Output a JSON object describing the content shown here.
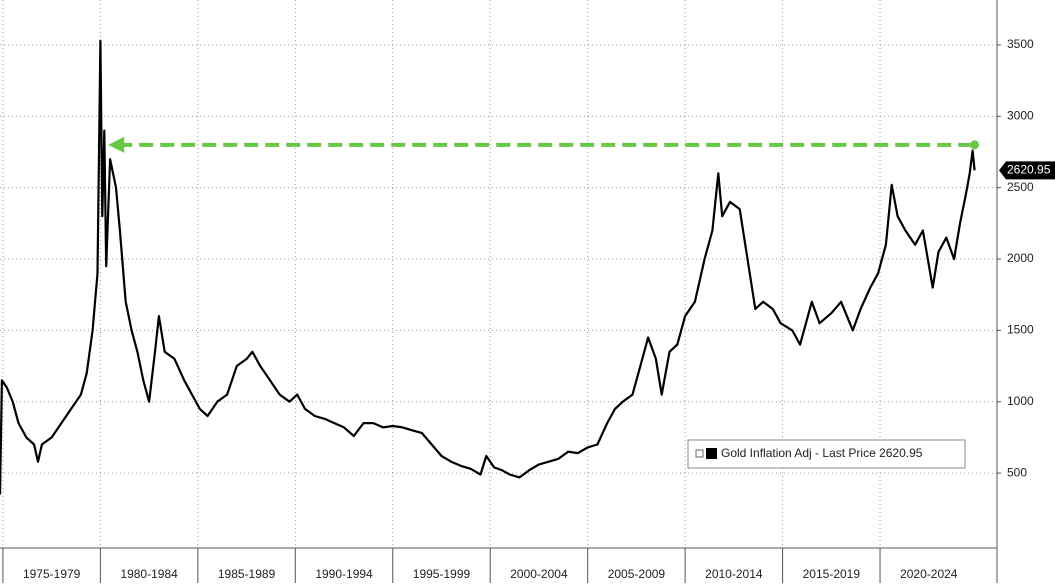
{
  "chart_data": {
    "type": "line",
    "series": [
      {
        "name": "Gold Inflation Adj",
        "color": "#000000",
        "x": [
          1974.85,
          1974.95,
          1975.2,
          1975.5,
          1975.8,
          1976.2,
          1976.6,
          1976.8,
          1977.0,
          1977.5,
          1978.0,
          1978.5,
          1979.0,
          1979.3,
          1979.6,
          1979.85,
          1980.0,
          1980.1,
          1980.2,
          1980.3,
          1980.5,
          1980.8,
          1981.0,
          1981.3,
          1981.6,
          1981.9,
          1982.2,
          1982.5,
          1982.8,
          1983.0,
          1983.3,
          1983.8,
          1984.3,
          1984.7,
          1985.1,
          1985.5,
          1986.0,
          1986.5,
          1987.0,
          1987.5,
          1987.8,
          1988.2,
          1988.7,
          1989.2,
          1989.7,
          1990.1,
          1990.5,
          1991.0,
          1991.5,
          1992.0,
          1992.5,
          1993.0,
          1993.5,
          1994.0,
          1994.5,
          1995.0,
          1995.5,
          1996.0,
          1996.5,
          1997.0,
          1997.5,
          1998.0,
          1998.5,
          1999.0,
          1999.5,
          1999.8,
          2000.2,
          2000.6,
          2001.0,
          2001.5,
          2002.0,
          2002.5,
          2003.0,
          2003.5,
          2004.0,
          2004.5,
          2005.0,
          2005.5,
          2006.0,
          2006.4,
          2006.8,
          2007.3,
          2007.8,
          2008.1,
          2008.5,
          2008.8,
          2009.2,
          2009.6,
          2010.0,
          2010.5,
          2011.0,
          2011.4,
          2011.7,
          2011.9,
          2012.3,
          2012.8,
          2013.2,
          2013.6,
          2014.0,
          2014.5,
          2014.9,
          2015.5,
          2015.9,
          2016.5,
          2016.9,
          2017.5,
          2018.0,
          2018.6,
          2019.0,
          2019.5,
          2019.9,
          2020.3,
          2020.6,
          2020.9,
          2021.3,
          2021.8,
          2022.2,
          2022.7,
          2023.0,
          2023.4,
          2023.8,
          2024.1,
          2024.4,
          2024.6,
          2024.75,
          2024.85
        ],
        "values": [
          350,
          1150,
          1100,
          1000,
          850,
          750,
          700,
          580,
          700,
          750,
          850,
          950,
          1050,
          1200,
          1500,
          1900,
          3530,
          2300,
          2900,
          1950,
          2700,
          2500,
          2200,
          1700,
          1500,
          1350,
          1150,
          1000,
          1350,
          1600,
          1350,
          1300,
          1150,
          1050,
          950,
          900,
          1000,
          1050,
          1250,
          1300,
          1350,
          1250,
          1150,
          1050,
          1000,
          1050,
          950,
          900,
          880,
          850,
          820,
          760,
          850,
          850,
          820,
          830,
          820,
          800,
          780,
          700,
          620,
          580,
          550,
          530,
          490,
          620,
          540,
          520,
          490,
          470,
          520,
          560,
          580,
          600,
          650,
          640,
          680,
          700,
          850,
          950,
          1000,
          1050,
          1300,
          1450,
          1300,
          1050,
          1350,
          1400,
          1600,
          1700,
          2000,
          2200,
          2600,
          2300,
          2400,
          2350,
          2000,
          1650,
          1700,
          1650,
          1550,
          1500,
          1400,
          1700,
          1550,
          1620,
          1700,
          1500,
          1650,
          1800,
          1900,
          2100,
          2520,
          2300,
          2200,
          2100,
          2200,
          1800,
          2050,
          2150,
          2000,
          2250,
          2450,
          2600,
          2760,
          2620.95
        ]
      }
    ],
    "xlim": [
      1974.85,
      2026
    ],
    "xticks": [
      {
        "value": 1975,
        "label": "1975-1979"
      },
      {
        "value": 1980,
        "label": "1980-1984"
      },
      {
        "value": 1985,
        "label": "1985-1989"
      },
      {
        "value": 1990,
        "label": "1990-1994"
      },
      {
        "value": 1995,
        "label": "1995-1999"
      },
      {
        "value": 2000,
        "label": "2000-2004"
      },
      {
        "value": 2005,
        "label": "2005-2009"
      },
      {
        "value": 2010,
        "label": "2010-2014"
      },
      {
        "value": 2015,
        "label": "2015-2019"
      },
      {
        "value": 2020,
        "label": "2020-2024"
      }
    ],
    "ylim": [
      -25,
      3815
    ],
    "yticks": [
      500,
      1000,
      1500,
      2000,
      2500,
      3000,
      3500
    ],
    "grid": true,
    "reference_arrow": {
      "value": 2800,
      "x": [
        1980.4,
        2024.85
      ],
      "color": "#66c845"
    },
    "last_price_label": "2620.95",
    "legend_label": "Gold Inflation Adj - Last Price 2620.95"
  }
}
